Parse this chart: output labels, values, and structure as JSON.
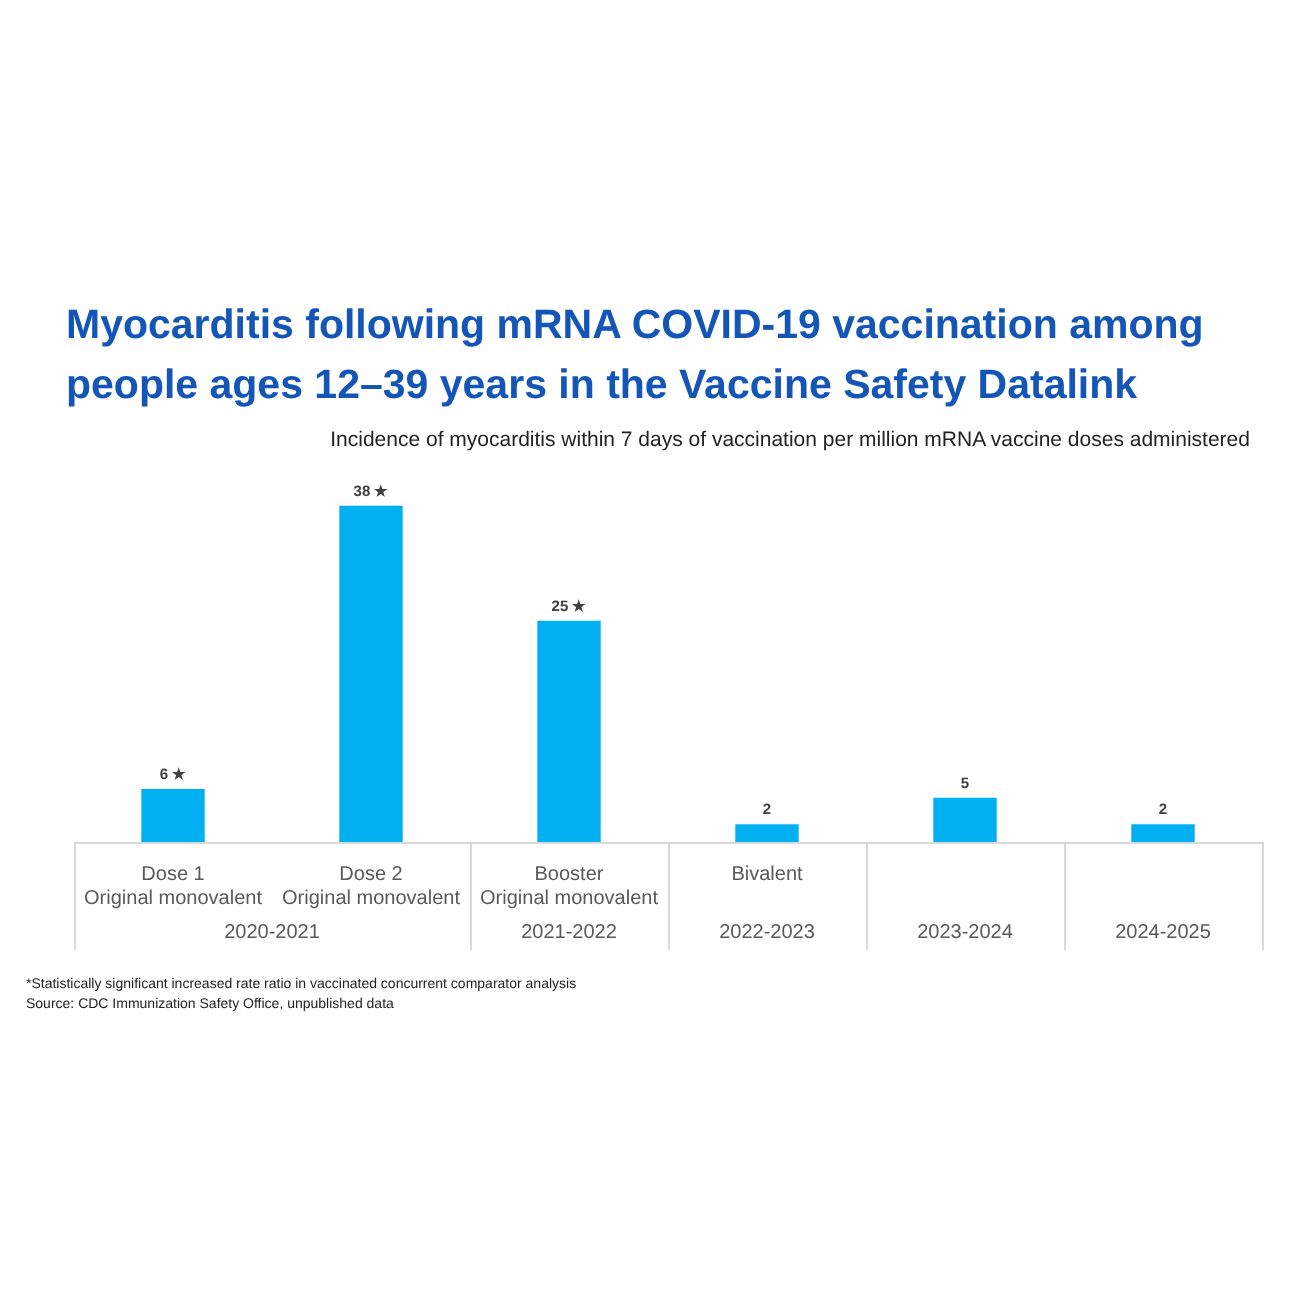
{
  "chart_data": {
    "type": "bar",
    "title": "Myocarditis following mRNA COVID-19 vaccination among people ages 12–39 years in the Vaccine Safety Datalink",
    "subtitle": "Incidence of myocarditis within 7 days of vaccination per million mRNA vaccine doses administered",
    "categories": [
      "Dose 1\nOriginal monovalent",
      "Dose 2\nOriginal monovalent",
      "Booster\nOriginal monovalent",
      "Bivalent",
      null,
      null
    ],
    "values": [
      6,
      38,
      25,
      2,
      5,
      2
    ],
    "color": "#00b0f0",
    "value_labels": [
      "6 ★",
      "38 ★",
      "25 ★",
      "2",
      "5",
      "2"
    ],
    "annotations": [
      {
        "text": "2020-2021"
      },
      {
        "text": "2021-2022"
      },
      {
        "text": "2022-2023"
      },
      {
        "text": "2023-2024"
      },
      {
        "text": "2024-2025"
      },
      "*Statistically significant increased rate ratio in vaccinated concurrent comparator analysis",
      "Source: CDC Immunization Safety Office, unpublished data"
    ]
  }
}
